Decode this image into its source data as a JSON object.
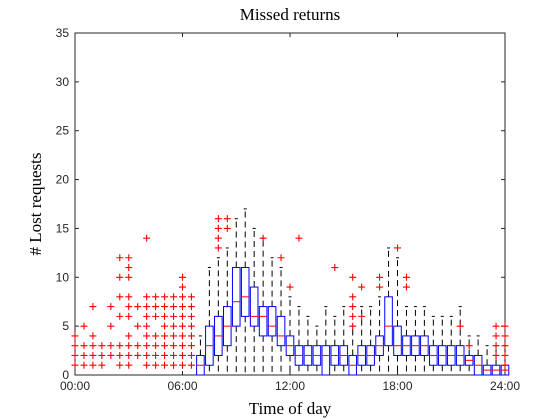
{
  "chart_data": {
    "type": "box",
    "title": "Missed returns",
    "xlabel": "Time of day",
    "ylabel": "# Lost requests",
    "ylim": [
      0,
      35
    ],
    "xlim": [
      0,
      24
    ],
    "x_ticks": [
      {
        "value": 0,
        "label": "00:00"
      },
      {
        "value": 6,
        "label": "06:00"
      },
      {
        "value": 12,
        "label": "12:00"
      },
      {
        "value": 18,
        "label": "18:00"
      },
      {
        "value": 24,
        "label": "24:00"
      }
    ],
    "y_ticks": [
      0,
      5,
      10,
      15,
      20,
      25,
      30,
      35
    ],
    "grid": false,
    "box_color": "#0000ff",
    "median_color": "#ff0000",
    "whisker_color": "#000000",
    "outlier_color": "#ff0000",
    "boxes": [
      {
        "x": 7.0,
        "q1": 0,
        "median": 1,
        "q3": 2,
        "lo": 0,
        "hi": 4
      },
      {
        "x": 7.5,
        "q1": 1,
        "median": 3,
        "q3": 5,
        "lo": 0,
        "hi": 11
      },
      {
        "x": 8.0,
        "q1": 2,
        "median": 4,
        "q3": 6,
        "lo": 0,
        "hi": 12
      },
      {
        "x": 8.5,
        "q1": 3,
        "median": 5,
        "q3": 7,
        "lo": 0,
        "hi": 13
      },
      {
        "x": 9.0,
        "q1": 5,
        "median": 7.5,
        "q3": 11,
        "lo": 0,
        "hi": 16
      },
      {
        "x": 9.5,
        "q1": 6,
        "median": 8,
        "q3": 11,
        "lo": 0,
        "hi": 17
      },
      {
        "x": 10.0,
        "q1": 5,
        "median": 6,
        "q3": 9,
        "lo": 0,
        "hi": 15
      },
      {
        "x": 10.5,
        "q1": 4,
        "median": 6,
        "q3": 7,
        "lo": 0,
        "hi": 14
      },
      {
        "x": 11.0,
        "q1": 4,
        "median": 5,
        "q3": 7,
        "lo": 0,
        "hi": 12
      },
      {
        "x": 11.5,
        "q1": 3,
        "median": 4,
        "q3": 6,
        "lo": 0,
        "hi": 11
      },
      {
        "x": 12.0,
        "q1": 2,
        "median": 3,
        "q3": 4,
        "lo": 0,
        "hi": 8
      },
      {
        "x": 12.5,
        "q1": 1,
        "median": 2,
        "q3": 3,
        "lo": 0,
        "hi": 7
      },
      {
        "x": 13.0,
        "q1": 1,
        "median": 2,
        "q3": 3,
        "lo": 0,
        "hi": 6
      },
      {
        "x": 13.5,
        "q1": 1,
        "median": 2,
        "q3": 3,
        "lo": 0,
        "hi": 5
      },
      {
        "x": 14.0,
        "q1": 0,
        "median": 2,
        "q3": 3,
        "lo": 0,
        "hi": 7
      },
      {
        "x": 14.5,
        "q1": 1,
        "median": 2,
        "q3": 3,
        "lo": 0,
        "hi": 6
      },
      {
        "x": 15.0,
        "q1": 1,
        "median": 2,
        "q3": 3,
        "lo": 0,
        "hi": 7
      },
      {
        "x": 15.5,
        "q1": 0,
        "median": 1,
        "q3": 2,
        "lo": 0,
        "hi": 5
      },
      {
        "x": 16.0,
        "q1": 1,
        "median": 2,
        "q3": 3,
        "lo": 0,
        "hi": 7
      },
      {
        "x": 16.5,
        "q1": 1,
        "median": 2,
        "q3": 3,
        "lo": 0,
        "hi": 7
      },
      {
        "x": 17.0,
        "q1": 2,
        "median": 3,
        "q3": 4,
        "lo": 0,
        "hi": 8
      },
      {
        "x": 17.5,
        "q1": 3,
        "median": 5,
        "q3": 8,
        "lo": 0,
        "hi": 13
      },
      {
        "x": 18.0,
        "q1": 2,
        "median": 3,
        "q3": 5,
        "lo": 0,
        "hi": 12
      },
      {
        "x": 18.5,
        "q1": 2,
        "median": 3,
        "q3": 4,
        "lo": 0,
        "hi": 7
      },
      {
        "x": 19.0,
        "q1": 2,
        "median": 3,
        "q3": 4,
        "lo": 0,
        "hi": 7
      },
      {
        "x": 19.5,
        "q1": 2,
        "median": 3,
        "q3": 4,
        "lo": 0,
        "hi": 7
      },
      {
        "x": 20.0,
        "q1": 1,
        "median": 2,
        "q3": 3,
        "lo": 0,
        "hi": 6
      },
      {
        "x": 20.5,
        "q1": 1,
        "median": 2,
        "q3": 3,
        "lo": 0,
        "hi": 6
      },
      {
        "x": 21.0,
        "q1": 1,
        "median": 2,
        "q3": 3,
        "lo": 0,
        "hi": 6
      },
      {
        "x": 21.5,
        "q1": 1,
        "median": 2,
        "q3": 3,
        "lo": 0,
        "hi": 7
      },
      {
        "x": 22.0,
        "q1": 1,
        "median": 1.5,
        "q3": 2,
        "lo": 0,
        "hi": 4
      },
      {
        "x": 22.5,
        "q1": 0,
        "median": 1,
        "q3": 2,
        "lo": 0,
        "hi": 4
      },
      {
        "x": 23.0,
        "q1": 0,
        "median": 0.5,
        "q3": 1,
        "lo": 0,
        "hi": 3
      },
      {
        "x": 23.5,
        "q1": 0,
        "median": 0.5,
        "q3": 1,
        "lo": 0,
        "hi": 3
      },
      {
        "x": 24.0,
        "q1": 0,
        "median": 0.5,
        "q3": 1,
        "lo": 0,
        "hi": 3
      }
    ],
    "outliers": [
      {
        "x": 0.0,
        "y": [
          1,
          2,
          3,
          4
        ]
      },
      {
        "x": 0.5,
        "y": [
          1,
          2,
          3,
          5
        ]
      },
      {
        "x": 1.0,
        "y": [
          1,
          2,
          3,
          4,
          7
        ]
      },
      {
        "x": 1.5,
        "y": [
          1,
          2,
          3
        ]
      },
      {
        "x": 2.0,
        "y": [
          2,
          3,
          5,
          7
        ]
      },
      {
        "x": 2.5,
        "y": [
          1,
          2,
          3,
          6,
          8,
          10,
          12
        ]
      },
      {
        "x": 3.0,
        "y": [
          1,
          2,
          3,
          4,
          6,
          7,
          8,
          10,
          11,
          12
        ]
      },
      {
        "x": 3.5,
        "y": [
          2,
          3,
          5,
          7
        ]
      },
      {
        "x": 4.0,
        "y": [
          1,
          2,
          3,
          4,
          5,
          6,
          7,
          8,
          14
        ]
      },
      {
        "x": 4.5,
        "y": [
          1,
          2,
          3,
          4,
          6,
          7,
          8
        ]
      },
      {
        "x": 5.0,
        "y": [
          1,
          2,
          3,
          4,
          5,
          6,
          7,
          8
        ]
      },
      {
        "x": 5.5,
        "y": [
          1,
          2,
          3,
          4,
          5,
          6,
          7,
          8
        ]
      },
      {
        "x": 6.0,
        "y": [
          1,
          2,
          3,
          4,
          5,
          6,
          7,
          8,
          9,
          10
        ]
      },
      {
        "x": 6.5,
        "y": [
          1,
          2,
          3,
          4,
          5,
          6,
          7,
          8
        ]
      },
      {
        "x": 8.0,
        "y": [
          13,
          14,
          15,
          16
        ]
      },
      {
        "x": 8.5,
        "y": [
          15,
          16
        ]
      },
      {
        "x": 10.5,
        "y": [
          14
        ]
      },
      {
        "x": 11.5,
        "y": [
          12
        ]
      },
      {
        "x": 12.0,
        "y": [
          9
        ]
      },
      {
        "x": 12.5,
        "y": [
          14
        ]
      },
      {
        "x": 14.5,
        "y": [
          11
        ]
      },
      {
        "x": 15.5,
        "y": [
          5,
          6,
          7,
          8,
          10
        ]
      },
      {
        "x": 16.0,
        "y": [
          6,
          9
        ]
      },
      {
        "x": 17.0,
        "y": [
          9,
          10
        ]
      },
      {
        "x": 18.0,
        "y": [
          13
        ]
      },
      {
        "x": 18.5,
        "y": [
          9,
          10
        ]
      },
      {
        "x": 21.5,
        "y": [
          5
        ]
      },
      {
        "x": 22.0,
        "y": [
          3
        ]
      },
      {
        "x": 23.5,
        "y": [
          2,
          3,
          4,
          5
        ]
      },
      {
        "x": 24.0,
        "y": [
          1,
          2,
          3,
          4,
          5
        ]
      }
    ]
  }
}
